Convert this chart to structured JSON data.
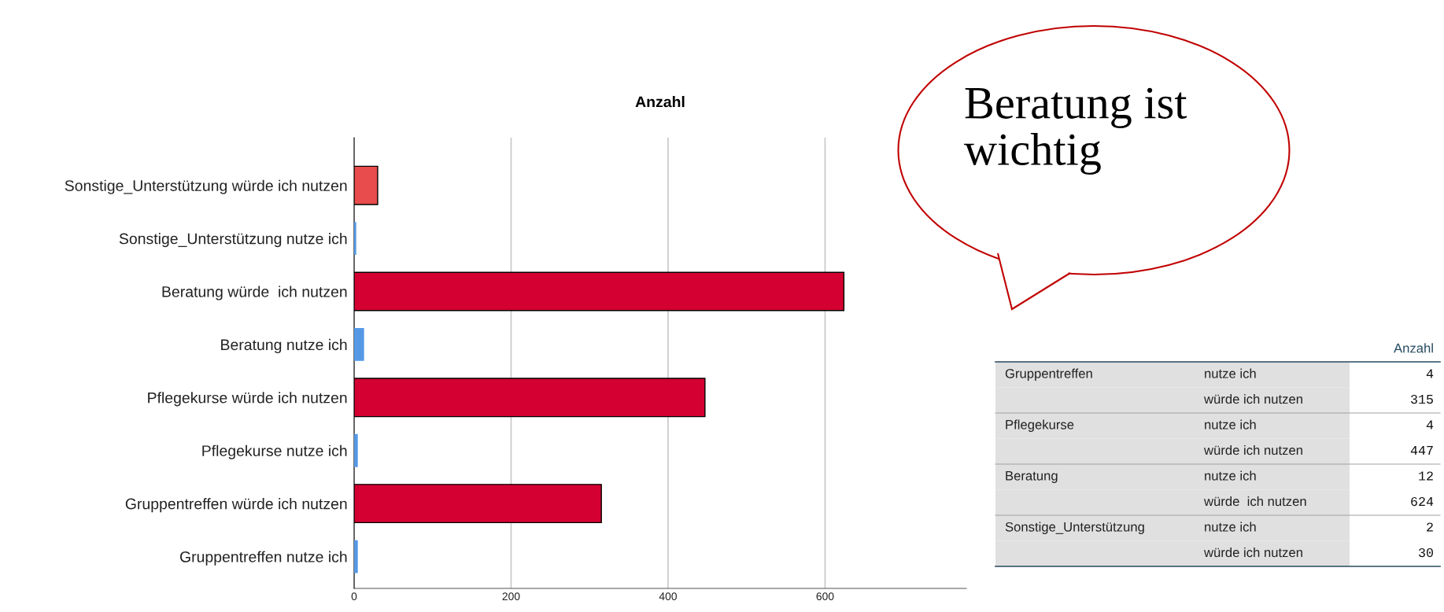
{
  "chart_data": {
    "type": "bar",
    "orientation": "horizontal",
    "title": "Anzahl",
    "categories": [
      "Sonstige_Unterstützung würde ich nutzen",
      "Sonstige_Unterstützung nutze ich",
      "Beratung würde  ich nutzen",
      "Beratung nutze ich",
      "Pflegekurse würde ich nutzen",
      "Pflegekurse nutze ich",
      "Gruppentreffen würde ich nutzen",
      "Gruppentreffen nutze ich"
    ],
    "values": [
      30,
      2,
      624,
      12,
      447,
      4,
      315,
      4
    ],
    "colors": [
      "#e84c4c",
      "#5599e6",
      "#d50032",
      "#5599e6",
      "#d50032",
      "#5599e6",
      "#d50032",
      "#5599e6"
    ],
    "xlim": [
      0,
      780
    ],
    "xticks": [
      0,
      200,
      400,
      600
    ],
    "grid": "x",
    "annotations": [
      "Beratung ist\nwichtig",
      "Anzahl",
      "Gruppentreffen",
      "nutze ich",
      "4",
      "würde ich nutzen",
      "315",
      "Pflegekurse",
      "nutze ich",
      "4",
      "würde ich nutzen",
      "447",
      "Beratung",
      "nutze ich",
      "12",
      "würde  ich nutzen",
      "624",
      "Sonstige_Unterstützung",
      "nutze ich",
      "2",
      "würde ich nutzen",
      "30"
    ]
  }
}
